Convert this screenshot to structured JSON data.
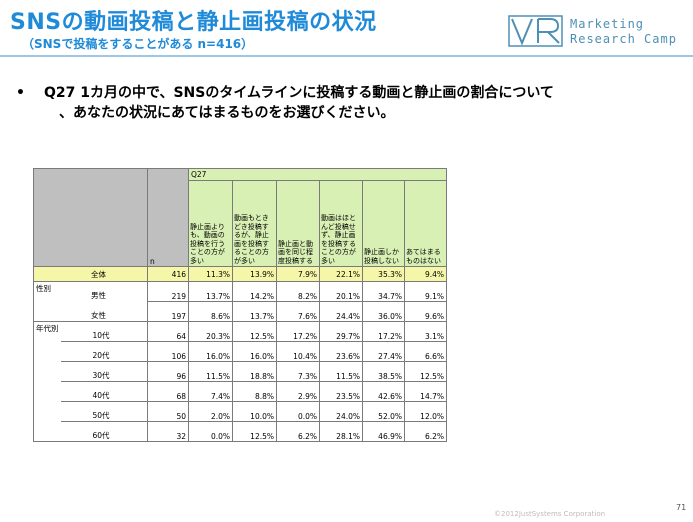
{
  "header": {
    "title": "SNSの動画投稿と静止画投稿の状況",
    "subtitle": "（SNSで投稿をすることがある n=416）",
    "logo_mark": "VR",
    "logo_line1": "Marketing",
    "logo_line2": "Research Camp"
  },
  "question": {
    "bullet": "•",
    "line1": "Q27 1カ月の中で、SNSのタイムラインに投稿する動画と静止画の割合について",
    "line2": "、あなたの状況にあてはまるものをお選びください。"
  },
  "table": {
    "n_label": "n",
    "q_label": "Q27",
    "columns": [
      "静止画よりも、動画の投稿を行うことの方が多い",
      "動画もときどき投稿するが、静止画を投稿することの方が多い",
      "静止画と動画を同じ程度投稿する",
      "動画はほとんど投稿せず、静止画を投稿することの方が多い",
      "静止画しか投稿しない",
      "あてはまるものはない"
    ],
    "rows": [
      {
        "group": "",
        "label": "全体",
        "n": "416",
        "values": [
          "11.3%",
          "13.9%",
          "7.9%",
          "22.1%",
          "35.3%",
          "9.4%"
        ]
      },
      {
        "group": "性別",
        "label": "男性",
        "n": "219",
        "values": [
          "13.7%",
          "14.2%",
          "8.2%",
          "20.1%",
          "34.7%",
          "9.1%"
        ]
      },
      {
        "group": "",
        "label": "女性",
        "n": "197",
        "values": [
          "8.6%",
          "13.7%",
          "7.6%",
          "24.4%",
          "36.0%",
          "9.6%"
        ]
      },
      {
        "group": "年代別",
        "label": "10代",
        "n": "64",
        "values": [
          "20.3%",
          "12.5%",
          "17.2%",
          "29.7%",
          "17.2%",
          "3.1%"
        ]
      },
      {
        "group": "",
        "label": "20代",
        "n": "106",
        "values": [
          "16.0%",
          "16.0%",
          "10.4%",
          "23.6%",
          "27.4%",
          "6.6%"
        ]
      },
      {
        "group": "",
        "label": "30代",
        "n": "96",
        "values": [
          "11.5%",
          "18.8%",
          "7.3%",
          "11.5%",
          "38.5%",
          "12.5%"
        ]
      },
      {
        "group": "",
        "label": "40代",
        "n": "68",
        "values": [
          "7.4%",
          "8.8%",
          "2.9%",
          "23.5%",
          "42.6%",
          "14.7%"
        ]
      },
      {
        "group": "",
        "label": "50代",
        "n": "50",
        "values": [
          "2.0%",
          "10.0%",
          "0.0%",
          "24.0%",
          "52.0%",
          "12.0%"
        ]
      },
      {
        "group": "",
        "label": "60代",
        "n": "32",
        "values": [
          "0.0%",
          "12.5%",
          "6.2%",
          "28.1%",
          "46.9%",
          "6.2%"
        ]
      }
    ]
  },
  "footer": {
    "page_number": "71",
    "copyright": "©2012JustSystems Corporation"
  }
}
